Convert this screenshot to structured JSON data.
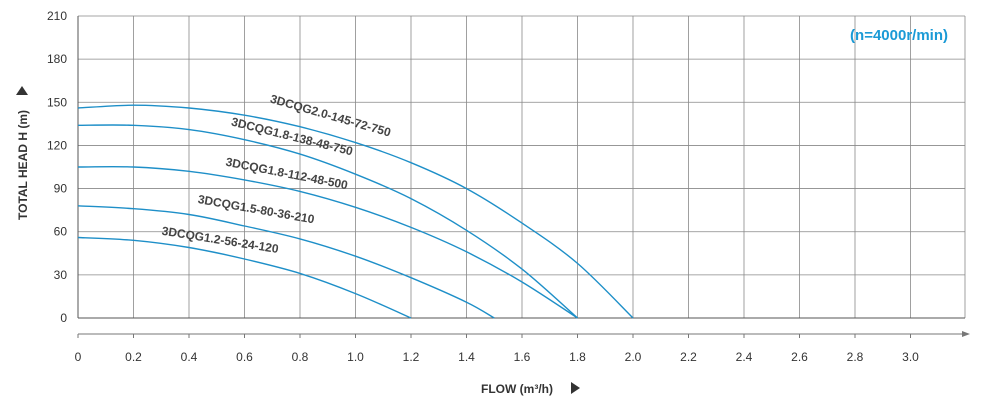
{
  "chart_data": {
    "type": "line",
    "title": "",
    "annotation": "(n=4000r/min)",
    "xlabel": "FLOW (m³/h)",
    "ylabel": "TOTAL HEAD H (m)",
    "xlim": [
      0,
      3.2
    ],
    "ylim": [
      0,
      210
    ],
    "x_ticks": [
      "0",
      "0.2",
      "0.4",
      "0.6",
      "0.8",
      "1.0",
      "1.2",
      "1.4",
      "1.6",
      "1.8",
      "2.0",
      "2.2",
      "2.4",
      "2.6",
      "2.8",
      "3.0"
    ],
    "y_ticks": [
      "0",
      "30",
      "60",
      "90",
      "120",
      "150",
      "180",
      "210"
    ],
    "grid": true,
    "colors": {
      "curve": "#1e8fc8",
      "grid": "#888888",
      "axis": "#555555",
      "annotation": "#1a9ad6",
      "label": "#444444"
    },
    "series": [
      {
        "name": "3DCQG2.0-145-72-750",
        "x": [
          0,
          0.2,
          0.4,
          0.6,
          0.8,
          1.0,
          1.2,
          1.4,
          1.6,
          1.8,
          2.0
        ],
        "y": [
          146,
          148,
          146,
          141,
          133,
          122,
          108,
          90,
          66,
          38,
          0
        ]
      },
      {
        "name": "3DCQG1.8-138-48-750",
        "x": [
          0,
          0.2,
          0.4,
          0.6,
          0.8,
          1.0,
          1.2,
          1.4,
          1.6,
          1.8
        ],
        "y": [
          134,
          134,
          131,
          124,
          114,
          100,
          83,
          61,
          34,
          0
        ]
      },
      {
        "name": "3DCQG1.8-112-48-500",
        "x": [
          0,
          0.2,
          0.4,
          0.6,
          0.8,
          1.0,
          1.2,
          1.4,
          1.6,
          1.8
        ],
        "y": [
          105,
          105,
          102,
          96,
          88,
          77,
          63,
          46,
          25,
          0
        ]
      },
      {
        "name": "3DCQG1.5-80-36-210",
        "x": [
          0,
          0.2,
          0.4,
          0.6,
          0.8,
          1.0,
          1.2,
          1.4,
          1.5
        ],
        "y": [
          78,
          76,
          72,
          64,
          55,
          43,
          28,
          11,
          0
        ]
      },
      {
        "name": "3DCQG1.2-56-24-120",
        "x": [
          0,
          0.2,
          0.4,
          0.6,
          0.8,
          1.0,
          1.2
        ],
        "y": [
          56,
          54,
          49,
          41,
          31,
          17,
          0
        ]
      }
    ]
  }
}
